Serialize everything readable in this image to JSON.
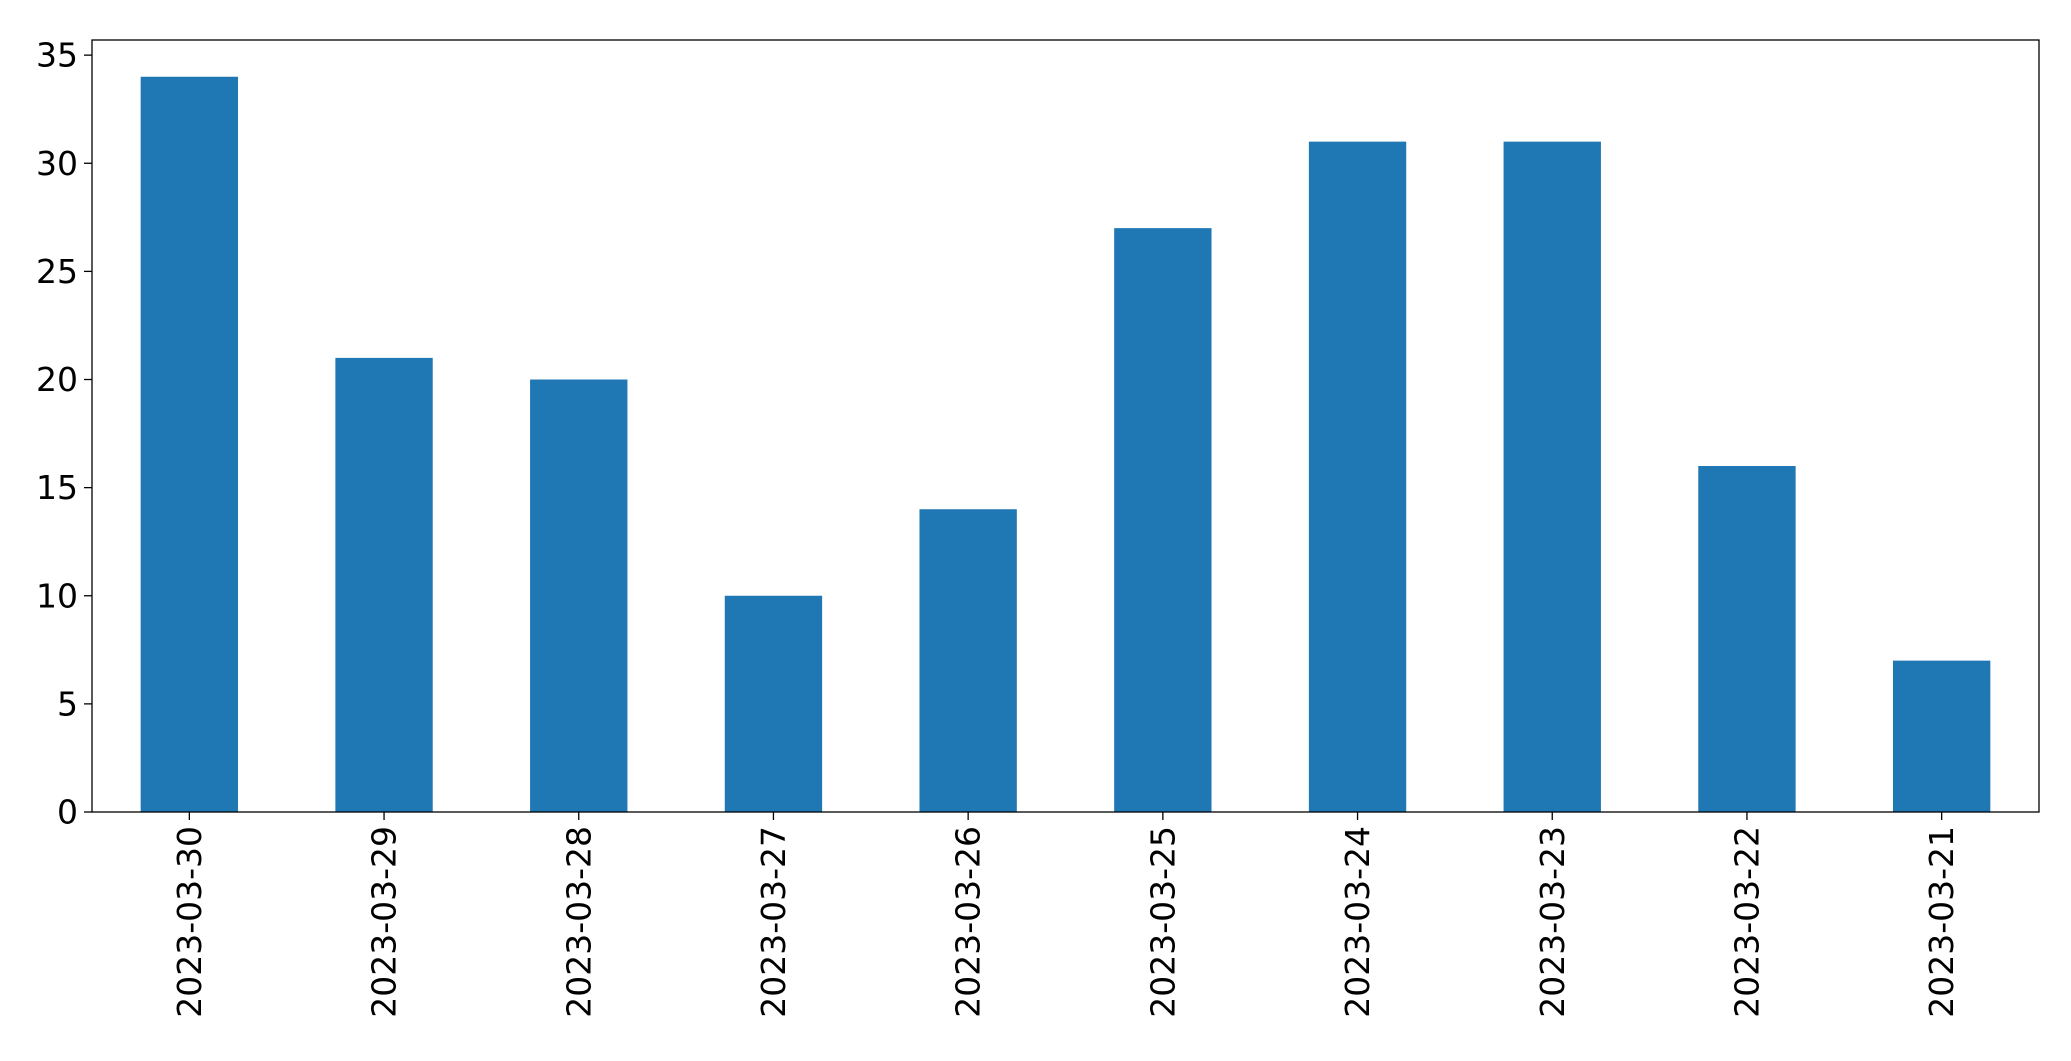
{
  "chart_data": {
    "type": "bar",
    "title": "",
    "xlabel": "",
    "ylabel": "",
    "categories": [
      "2023-03-30",
      "2023-03-29",
      "2023-03-28",
      "2023-03-27",
      "2023-03-26",
      "2023-03-25",
      "2023-03-24",
      "2023-03-23",
      "2023-03-22",
      "2023-03-21"
    ],
    "values": [
      34,
      21,
      20,
      10,
      14,
      27,
      31,
      31,
      16,
      7
    ],
    "ylim": [
      0,
      35.7
    ],
    "yticks": [
      "0",
      "5",
      "10",
      "15",
      "20",
      "25",
      "30",
      "35"
    ],
    "bar_color": "#1f77b4",
    "grid": false,
    "legend": "none",
    "x_tick_rotation": "vertical"
  }
}
